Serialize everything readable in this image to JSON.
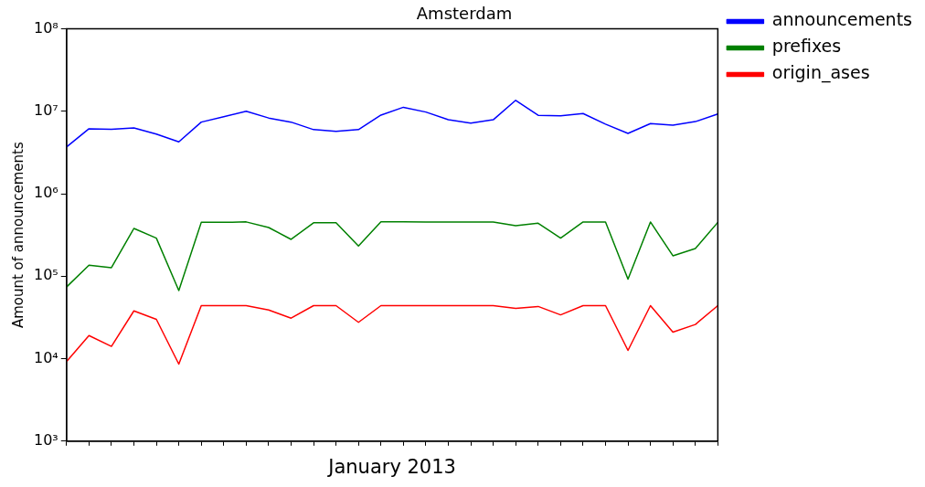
{
  "chart_data": {
    "type": "line",
    "title": "Amsterdam",
    "xlabel": "January 2013",
    "ylabel": "Amount of announcements",
    "categories": [
      null,
      null,
      null,
      null,
      null,
      null,
      null,
      null,
      null,
      null,
      null,
      null,
      null,
      null,
      null,
      null,
      null,
      null,
      null,
      null,
      null,
      null,
      null,
      null,
      null,
      null,
      null,
      null,
      null,
      null
    ],
    "series": [
      {
        "name": "announcements",
        "color": "#0000ff",
        "values": [
          3690000,
          6150000,
          6040000,
          6300000,
          5300000,
          4270000,
          7400000,
          8600000,
          10000000,
          8300000,
          7400000,
          6000000,
          5700000,
          6000000,
          9000000,
          11200000,
          9800000,
          7900000,
          7200000,
          7900000,
          13600000,
          8950000,
          8800000,
          9400000,
          7000000,
          5400000,
          7100000,
          6800000,
          7500000,
          9300000
        ]
      },
      {
        "name": "prefixes",
        "color": "#008000",
        "values": [
          74000,
          136000,
          127000,
          380000,
          290000,
          67000,
          450000,
          450000,
          456000,
          390000,
          280000,
          445000,
          445000,
          233000,
          457000,
          457000,
          455000,
          455000,
          455000,
          455000,
          410000,
          440000,
          290000,
          455000,
          455000,
          92000,
          455000,
          177000,
          217000,
          450000
        ]
      },
      {
        "name": "origin_ases",
        "color": "#ff0000",
        "values": [
          9200,
          19100,
          14100,
          38000,
          30000,
          8600,
          44000,
          44000,
          44000,
          39000,
          31000,
          44000,
          44000,
          27600,
          44000,
          44000,
          44000,
          44000,
          44000,
          44000,
          40800,
          43000,
          34000,
          44000,
          44000,
          12600,
          44000,
          21000,
          26000,
          44000
        ]
      }
    ],
    "log": "y",
    "ylim": [
      1000,
      100000000
    ],
    "yticks": [
      {
        "value": 1000,
        "label": "10³"
      },
      {
        "value": 10000,
        "label": "10⁴"
      },
      {
        "value": 100000,
        "label": "10⁵"
      },
      {
        "value": 1000000,
        "label": "10⁶"
      },
      {
        "value": 10000000,
        "label": "10⁷"
      },
      {
        "value": 100000000,
        "label": "10⁸"
      }
    ],
    "tick_labels": "y",
    "grid": false,
    "legend": "top right",
    "marker": "none",
    "line_style": "solid"
  }
}
